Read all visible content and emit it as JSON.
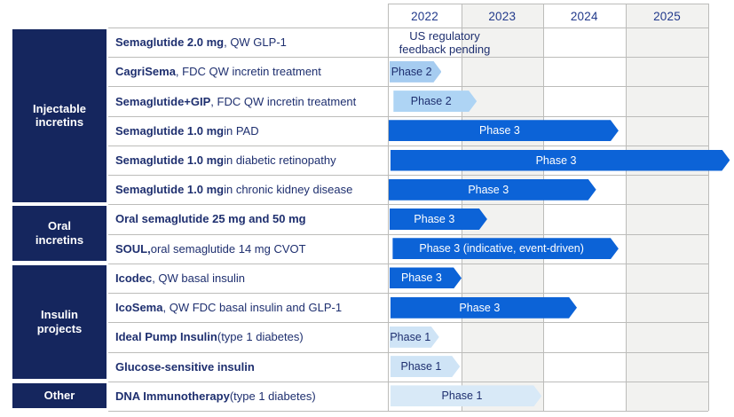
{
  "colors": {
    "category_bg": "#15265e",
    "body_text": "#1e2f6f",
    "year_text": "#21398b",
    "column_shade": "#f2f2f0",
    "grid": "#bcbcba",
    "phase3": "#0c63d7",
    "phase2": "#a6ccf0",
    "phase2b": "#aed4f4",
    "phase1": "#cfe4f6",
    "phase1b": "#d8e9f7",
    "bar_text_dark_bg": "#ffffff",
    "bar_text_light_bg": "#1e2f6f"
  },
  "chart_data": {
    "type": "gantt",
    "unit": "year",
    "xlim": [
      2022,
      2026
    ],
    "grid": true,
    "years": [
      "2022",
      "2023",
      "2024",
      "2025"
    ],
    "categories": [
      {
        "label": "Injectable incretins",
        "row_start": 0,
        "row_end": 5
      },
      {
        "label": "Oral incretins",
        "row_start": 6,
        "row_end": 7
      },
      {
        "label": "Insulin projects",
        "row_start": 8,
        "row_end": 11
      },
      {
        "label": "Other",
        "row_start": 12,
        "row_end": 12
      }
    ],
    "note_row": {
      "row": 0,
      "line1": "US regulatory",
      "line2": "feedback pending"
    },
    "rows": [
      {
        "name": "Semaglutide 2.0 mg",
        "desc": ", QW GLP-1",
        "bar": null
      },
      {
        "name": "CagriSema",
        "desc": ", FDC QW incretin treatment",
        "bar": {
          "label": "Phase 2",
          "level": "phase2",
          "start": 2022.02,
          "end": 2022.67,
          "extends_beyond_chart": false
        }
      },
      {
        "name": "Semaglutide+GIP",
        "desc": ", FDC QW incretin treatment",
        "bar": {
          "label": "Phase 2",
          "level": "phase2b",
          "start": 2022.07,
          "end": 2023.11,
          "extends_beyond_chart": false
        }
      },
      {
        "name": "Semaglutide 1.0 mg",
        "desc": " in PAD",
        "bar": {
          "label": "Phase 3",
          "level": "phase3",
          "start": 2022.01,
          "end": 2024.88,
          "extends_beyond_chart": false
        }
      },
      {
        "name": "Semaglutide 1.0 mg",
        "desc": " in diabetic retinopathy",
        "bar": {
          "label": "Phase 3",
          "level": "phase3",
          "start": 2022.03,
          "end": 2026.27,
          "extends_beyond_chart": true
        }
      },
      {
        "name": "Semaglutide 1.0 mg",
        "desc": " in chronic kidney disease",
        "bar": {
          "label": "Phase 3",
          "level": "phase3",
          "start": 2022.01,
          "end": 2024.6,
          "extends_beyond_chart": false
        }
      },
      {
        "name": "Oral semaglutide 25 mg and 50 mg",
        "desc": "",
        "bar": {
          "label": "Phase 3",
          "level": "phase3",
          "start": 2022.02,
          "end": 2023.24,
          "extends_beyond_chart": false
        }
      },
      {
        "name": "SOUL,",
        "desc": " oral semaglutide 14 mg CVOT",
        "bar": {
          "label": "Phase 3 (indicative, event-driven)",
          "level": "phase3",
          "start": 2022.06,
          "end": 2024.88,
          "extends_beyond_chart": false
        }
      },
      {
        "name": "Icodec",
        "desc": ", QW basal insulin",
        "bar": {
          "label": "Phase 3",
          "level": "phase3",
          "start": 2022.02,
          "end": 2022.92,
          "extends_beyond_chart": false
        }
      },
      {
        "name": "IcoSema",
        "desc": ", QW FDC basal insulin and GLP-1",
        "bar": {
          "label": "Phase 3",
          "level": "phase3",
          "start": 2022.03,
          "end": 2024.36,
          "extends_beyond_chart": false
        }
      },
      {
        "name": "Ideal Pump Insulin",
        "desc": " (type 1 diabetes)",
        "bar": {
          "label": "Phase 1",
          "level": "phase1",
          "start": 2022.02,
          "end": 2022.64,
          "extends_beyond_chart": false
        }
      },
      {
        "name": "Glucose-sensitive insulin",
        "desc": "",
        "bar": {
          "label": "Phase 1",
          "level": "phase1",
          "start": 2022.03,
          "end": 2022.9,
          "extends_beyond_chart": false
        }
      },
      {
        "name": "DNA Immunotherapy",
        "desc": " (type 1 diabetes)",
        "bar": {
          "label": "Phase 1",
          "level": "phase1b",
          "start": 2022.03,
          "end": 2023.92,
          "extends_beyond_chart": false
        }
      }
    ]
  }
}
